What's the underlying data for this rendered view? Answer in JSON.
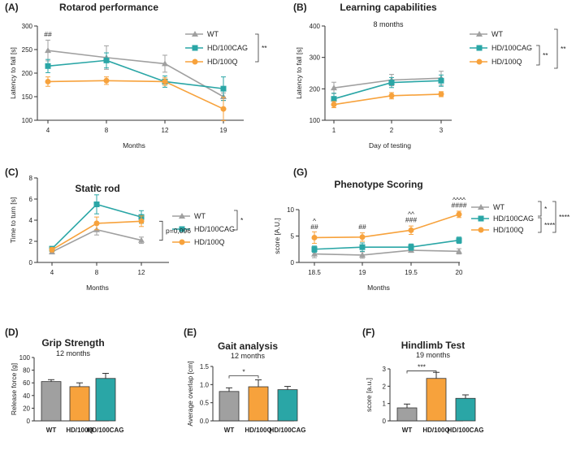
{
  "colors": {
    "wt": "#a0a0a0",
    "hdcag": "#2aa6a6",
    "hdq": "#f7a23c"
  },
  "chart_data": [
    {
      "id": "A",
      "panel_label": "(A)",
      "type": "line",
      "title": "Rotarod performance",
      "xlabel": "Months",
      "ylabel": "Latency to fall [s]",
      "categories": [
        "4",
        "8",
        "12",
        "19"
      ],
      "ylim": [
        100,
        300
      ],
      "yticks": [
        100,
        150,
        200,
        250,
        300
      ],
      "series": [
        {
          "name": "WT",
          "key": "wt",
          "marker": "tri",
          "values": [
            248,
            233,
            220,
            150
          ],
          "errors": [
            22,
            25,
            18,
            8
          ]
        },
        {
          "name": "HD/100CAG",
          "key": "hdcag",
          "marker": "sq",
          "values": [
            215,
            227,
            182,
            167
          ],
          "errors": [
            14,
            16,
            12,
            25
          ]
        },
        {
          "name": "HD/100Q",
          "key": "hdq",
          "marker": "circ",
          "values": [
            182,
            184,
            182,
            124
          ],
          "errors": [
            10,
            8,
            8,
            25
          ]
        }
      ],
      "annotations": [
        {
          "text": "##",
          "cat": 0,
          "y": 278
        }
      ],
      "brackets": [
        {
          "text": "**"
        }
      ]
    },
    {
      "id": "B",
      "panel_label": "(B)",
      "type": "line",
      "title": "Learning capabilities",
      "subtitle": "8 months",
      "xlabel": "Day of testing",
      "ylabel": "Latency to fall [s]",
      "categories": [
        "1",
        "2",
        "3"
      ],
      "ylim": [
        100,
        400
      ],
      "yticks": [
        100,
        200,
        300,
        400
      ],
      "series": [
        {
          "name": "WT",
          "key": "wt",
          "marker": "tri",
          "values": [
            203,
            228,
            234
          ],
          "errors": [
            18,
            18,
            22
          ]
        },
        {
          "name": "HD/100CAG",
          "key": "hdcag",
          "marker": "sq",
          "values": [
            168,
            220,
            226
          ],
          "errors": [
            18,
            16,
            18
          ]
        },
        {
          "name": "HD/100Q",
          "key": "hdq",
          "marker": "circ",
          "values": [
            150,
            178,
            183
          ],
          "errors": [
            10,
            10,
            8
          ]
        }
      ],
      "brackets": [
        {
          "text": "**"
        },
        {
          "text": "**"
        }
      ]
    },
    {
      "id": "C",
      "panel_label": "(C)",
      "type": "line",
      "title": "Static rod",
      "xlabel": "Months",
      "ylabel": "Time to turn [s]",
      "categories": [
        "4",
        "8",
        "12"
      ],
      "ylim": [
        0,
        8
      ],
      "yticks": [
        0,
        2,
        4,
        6,
        8
      ],
      "series": [
        {
          "name": "WT",
          "key": "wt",
          "marker": "tri",
          "values": [
            1.0,
            3.1,
            2.1
          ],
          "errors": [
            0.2,
            0.5,
            0.3
          ]
        },
        {
          "name": "HD/100CAG",
          "key": "hdcag",
          "marker": "sq",
          "values": [
            1.3,
            5.5,
            4.3
          ],
          "errors": [
            0.2,
            0.9,
            0.6
          ]
        },
        {
          "name": "HD/100Q",
          "key": "hdq",
          "marker": "circ",
          "values": [
            1.2,
            3.7,
            3.9
          ],
          "errors": [
            0.2,
            0.6,
            0.5
          ]
        }
      ],
      "annotations": [
        {
          "text": "^*",
          "cat": 1,
          "y": 6.8
        }
      ],
      "brackets": [
        {
          "text": "*"
        },
        {
          "text": "p=0,096"
        }
      ]
    },
    {
      "id": "G",
      "panel_label": "(G)",
      "type": "line",
      "title": "Phenotype Scoring",
      "xlabel": "Months",
      "ylabel": "score [A.U.]",
      "categories": [
        "18.5",
        "19",
        "19.5",
        "20"
      ],
      "ylim": [
        0,
        10
      ],
      "yticks": [
        0,
        5,
        10
      ],
      "series": [
        {
          "name": "WT",
          "key": "wt",
          "marker": "tri",
          "values": [
            1.6,
            1.4,
            2.3,
            2.1
          ],
          "errors": [
            0.7,
            0.6,
            0.4,
            0.5
          ]
        },
        {
          "name": "HD/100CAG",
          "key": "hdcag",
          "marker": "sq",
          "values": [
            2.5,
            2.9,
            2.9,
            4.2
          ],
          "errors": [
            0.6,
            0.8,
            0.6,
            0.6
          ]
        },
        {
          "name": "HD/100Q",
          "key": "hdq",
          "marker": "circ",
          "values": [
            4.7,
            4.8,
            6.1,
            9.1
          ],
          "errors": [
            1.1,
            0.8,
            0.8,
            0.6
          ]
        }
      ],
      "annotations": [
        {
          "text": "##",
          "cat": 0,
          "y": 6.3
        },
        {
          "text": "^",
          "cat": 0,
          "y": 7.4
        },
        {
          "text": "##",
          "cat": 1,
          "y": 6.3
        },
        {
          "text": "###",
          "cat": 2,
          "y": 7.6
        },
        {
          "text": "^^",
          "cat": 2,
          "y": 8.7
        },
        {
          "text": "####",
          "cat": 3,
          "y": 10.4
        },
        {
          "text": "^^^^",
          "cat": 3,
          "y": 11.4
        }
      ],
      "brackets": [
        {
          "text": "*"
        },
        {
          "text": "****"
        },
        {
          "text": "****"
        }
      ]
    },
    {
      "id": "D",
      "panel_label": "(D)",
      "type": "bar",
      "title": "Grip Strength",
      "subtitle": "12 months",
      "ylabel": "Release force [g]",
      "categories": [
        "WT",
        "HD/100Q",
        "HD/100CAG"
      ],
      "bar_keys": [
        "wt",
        "hdq",
        "hdcag"
      ],
      "values": [
        62,
        54,
        67
      ],
      "errors": [
        3,
        6,
        8
      ],
      "ylim": [
        0,
        100
      ],
      "yticks": [
        0,
        20,
        40,
        60,
        80,
        100
      ]
    },
    {
      "id": "E",
      "panel_label": "(E)",
      "type": "bar",
      "title": "Gait analysis",
      "subtitle": "12 months",
      "ylabel": "Average overlap [cm]",
      "categories": [
        "WT",
        "HD/100Q",
        "HD/100CAG"
      ],
      "bar_keys": [
        "wt",
        "hdq",
        "hdcag"
      ],
      "values": [
        0.81,
        0.94,
        0.86
      ],
      "errors": [
        0.1,
        0.19,
        0.09
      ],
      "ylim": [
        0,
        1.5
      ],
      "yticks": [
        0.0,
        0.5,
        1.0,
        1.5
      ],
      "tick_decimals": 1,
      "sig": {
        "text": "*",
        "from": 0,
        "to": 1,
        "y": 1.24
      }
    },
    {
      "id": "F",
      "panel_label": "(F)",
      "type": "bar",
      "title": "Hindlimb Test",
      "subtitle": "19 months",
      "ylabel": "score [a.u.]",
      "categories": [
        "WT",
        "HD/100Q",
        "HD/100CAG"
      ],
      "bar_keys": [
        "wt",
        "hdq",
        "hdcag"
      ],
      "values": [
        0.75,
        2.45,
        1.3
      ],
      "errors": [
        0.22,
        0.35,
        0.2
      ],
      "ylim": [
        0,
        3
      ],
      "yticks": [
        0,
        1,
        2,
        3
      ],
      "sig": {
        "text": "***",
        "from": 0,
        "to": 1,
        "y": 2.88
      }
    }
  ]
}
